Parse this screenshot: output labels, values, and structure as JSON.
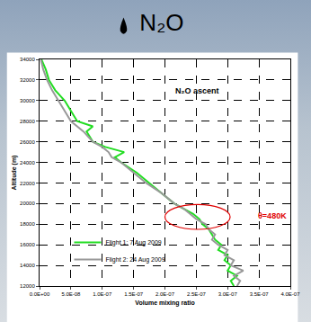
{
  "chart_data": {
    "type": "line",
    "title": "N₂O",
    "x_label": "Volume mixing ratio",
    "y_label": "Altitude (m)",
    "annotations": [
      {
        "text": "N₂O ascent",
        "color": "#000000"
      },
      {
        "text": "θ=480K",
        "color": "#e00000"
      }
    ],
    "xlim": [
      0,
      4e-07
    ],
    "xticks": [
      {
        "value": 0,
        "label": "0.0E+00"
      },
      {
        "value": 5e-08,
        "label": "5.0E-08"
      },
      {
        "value": 1e-07,
        "label": "1.0E-07"
      },
      {
        "value": 1.5e-07,
        "label": "1.5E-07"
      },
      {
        "value": 2e-07,
        "label": "2.0E-07"
      },
      {
        "value": 2.5e-07,
        "label": "2.5E-07"
      },
      {
        "value": 3e-07,
        "label": "3.0E-07"
      },
      {
        "value": 3.5e-07,
        "label": "3.5E-07"
      },
      {
        "value": 4e-07,
        "label": "4.0E-07"
      }
    ],
    "ylim": [
      12000,
      34000
    ],
    "yticks": [
      12000,
      14000,
      16000,
      18000,
      20000,
      22000,
      24000,
      26000,
      28000,
      30000,
      32000,
      34000
    ],
    "grid": true,
    "legend": "lower left",
    "series": [
      {
        "name": "Flight 1: 7 Aug 2009",
        "color": "#22dd22",
        "y": [
          12000,
          12500,
          13000,
          13500,
          14000,
          14500,
          15000,
          15500,
          16000,
          16500,
          17000,
          17500,
          18000,
          18500,
          19000,
          19500,
          20000,
          21000,
          22000,
          23000,
          24000,
          24500,
          25000,
          25500,
          26000,
          27000,
          27500,
          28000,
          29000,
          30000,
          31000,
          32000,
          33000,
          34000
        ],
        "x": [
          3.1e-07,
          3.05e-07,
          3.15e-07,
          3e-07,
          3.05e-07,
          2.95e-07,
          3e-07,
          2.85e-07,
          2.9e-07,
          2.8e-07,
          2.75e-07,
          2.7e-07,
          2.6e-07,
          2.55e-07,
          2.45e-07,
          2.3e-07,
          2.15e-07,
          1.95e-07,
          1.75e-07,
          1.55e-07,
          1.3e-07,
          1.2e-07,
          1.35e-07,
          1.05e-07,
          8.5e-08,
          7.5e-08,
          8.5e-08,
          6e-08,
          5e-08,
          4e-08,
          2.5e-08,
          1.5e-08,
          1e-08,
          3e-09
        ]
      },
      {
        "name": "Flight 2: 24 Aug 2009",
        "color": "#999999",
        "y": [
          12000,
          12500,
          13000,
          13500,
          14000,
          14500,
          15000,
          15500,
          16000,
          16500,
          17000,
          17500,
          18000,
          18500,
          19000,
          19500,
          20000,
          21000,
          22000,
          23000,
          24000,
          24500,
          25000,
          25500,
          26000,
          27000,
          27500,
          28000,
          29000,
          30000,
          31000,
          32000,
          33000,
          34000
        ],
        "x": [
          3.15e-07,
          3.2e-07,
          3.1e-07,
          3.25e-07,
          3.05e-07,
          3.1e-07,
          2.95e-07,
          3e-07,
          2.85e-07,
          2.75e-07,
          2.8e-07,
          2.7e-07,
          2.65e-07,
          2.5e-07,
          2.4e-07,
          2.3e-07,
          2.15e-07,
          1.95e-07,
          1.7e-07,
          1.5e-07,
          1.3e-07,
          1.15e-07,
          1.1e-07,
          1e-07,
          8.5e-08,
          7e-08,
          6e-08,
          5e-08,
          4e-08,
          3e-08,
          2e-08,
          1.2e-08,
          6e-09,
          2e-09
        ]
      }
    ]
  }
}
